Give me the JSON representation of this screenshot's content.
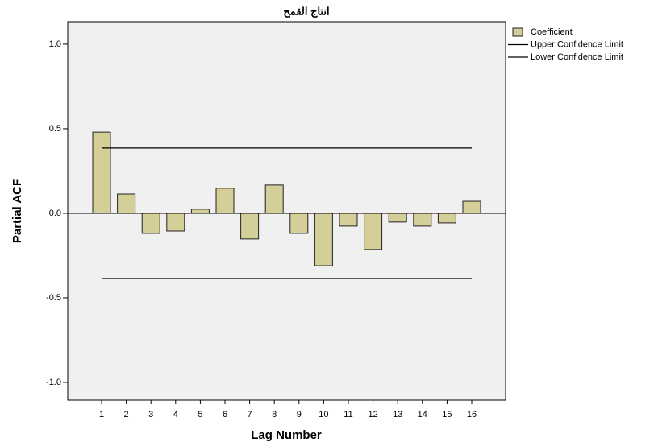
{
  "chart_data": {
    "type": "bar",
    "title": "انتاج القمح",
    "xlabel": "Lag Number",
    "ylabel": "Partial ACF",
    "categories": [
      "1",
      "2",
      "3",
      "4",
      "5",
      "6",
      "7",
      "8",
      "9",
      "10",
      "11",
      "12",
      "13",
      "14",
      "15",
      "16"
    ],
    "series": [
      {
        "name": "Coefficient",
        "color": "#d4cf98",
        "values": [
          0.48,
          0.114,
          -0.119,
          -0.105,
          0.024,
          0.148,
          -0.152,
          0.167,
          -0.119,
          -0.31,
          -0.076,
          -0.214,
          -0.052,
          -0.076,
          -0.057,
          0.071
        ]
      },
      {
        "name": "Upper Confidence Limit",
        "color": "#000000",
        "values": [
          0.386,
          0.386,
          0.386,
          0.386,
          0.386,
          0.386,
          0.386,
          0.386,
          0.386,
          0.386,
          0.386,
          0.386,
          0.386,
          0.386,
          0.386,
          0.386
        ]
      },
      {
        "name": "Lower Confidence Limit",
        "color": "#000000",
        "values": [
          -0.386,
          -0.386,
          -0.386,
          -0.386,
          -0.386,
          -0.386,
          -0.386,
          -0.386,
          -0.386,
          -0.386,
          -0.386,
          -0.386,
          -0.386,
          -0.386,
          -0.386,
          -0.386
        ]
      }
    ],
    "ylim": [
      -1.105,
      1.133
    ],
    "yticks": [
      {
        "value": 1,
        "label": "1.0"
      },
      0.5,
      {
        "value": 0,
        "label": "0.0"
      },
      -0.5,
      {
        "value": -1,
        "label": "-1.0"
      }
    ],
    "legend": "right"
  }
}
